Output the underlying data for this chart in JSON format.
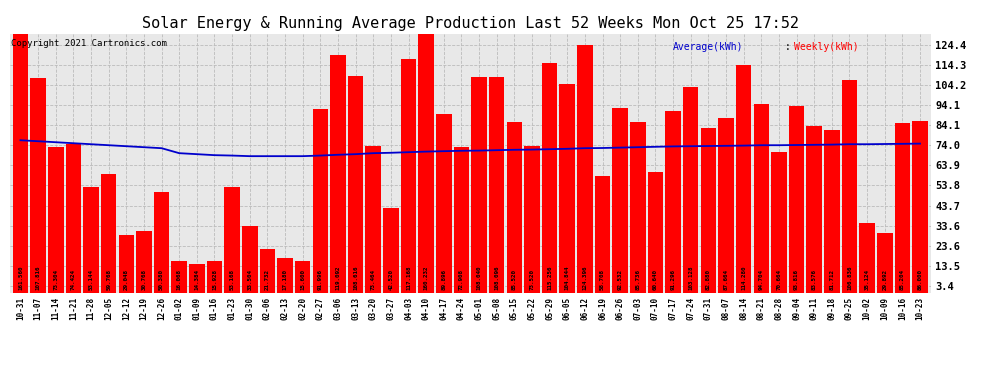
{
  "title": "Solar Energy & Running Average Production Last 52 Weeks Mon Oct 25 17:52",
  "copyright": "Copyright 2021 Cartronics.com",
  "legend_avg": "Average(kWh)",
  "legend_weekly": "Weekly(kWh)",
  "bar_color": "#ff0000",
  "avg_line_color": "#0000cc",
  "background_color": "#ffffff",
  "plot_bg_color": "#e8e8e8",
  "grid_color": "#bbbbbb",
  "categories": [
    "10-31",
    "11-07",
    "11-14",
    "11-21",
    "11-28",
    "12-05",
    "12-12",
    "12-19",
    "12-26",
    "01-02",
    "01-09",
    "01-16",
    "01-23",
    "01-30",
    "02-06",
    "02-13",
    "02-20",
    "02-27",
    "03-06",
    "03-13",
    "03-20",
    "03-27",
    "04-03",
    "04-10",
    "04-17",
    "04-24",
    "05-01",
    "05-08",
    "05-15",
    "05-22",
    "05-29",
    "06-05",
    "06-12",
    "06-19",
    "06-26",
    "07-03",
    "07-10",
    "07-17",
    "07-24",
    "07-31",
    "08-07",
    "08-14",
    "08-21",
    "08-28",
    "09-04",
    "09-11",
    "09-18",
    "09-25",
    "10-02",
    "10-09",
    "10-16",
    "10-23"
  ],
  "weekly_values": [
    161.56,
    107.816,
    73.304,
    74.424,
    53.144,
    59.768,
    29.048,
    30.768,
    50.38,
    16.068,
    14.384,
    15.928,
    53.168,
    33.504,
    21.732,
    17.18,
    15.6,
    91.996,
    119.092,
    108.616,
    73.464,
    42.52,
    117.168,
    160.232,
    89.896,
    72.908,
    108.04,
    108.096,
    85.52,
    73.52,
    115.256,
    104.844,
    124.396,
    58.708,
    92.532,
    85.736,
    60.64,
    91.296,
    103.128,
    82.88,
    87.664,
    114.28,
    94.704,
    70.664,
    93.816,
    83.576,
    81.712,
    106.836,
    35.124,
    29.892,
    85.204,
    86.0
  ],
  "avg_values": [
    76.5,
    76.0,
    75.5,
    75.0,
    74.5,
    74.0,
    73.5,
    73.0,
    72.5,
    70.0,
    69.5,
    69.0,
    68.8,
    68.5,
    68.5,
    68.5,
    68.5,
    68.8,
    69.2,
    69.5,
    70.0,
    70.2,
    70.5,
    70.8,
    71.0,
    71.2,
    71.3,
    71.5,
    71.7,
    71.8,
    72.0,
    72.2,
    72.5,
    72.6,
    72.8,
    73.0,
    73.2,
    73.4,
    73.5,
    73.6,
    73.7,
    73.8,
    74.0,
    74.0,
    74.1,
    74.2,
    74.3,
    74.5,
    74.5,
    74.6,
    74.7,
    74.8
  ],
  "ylim": [
    0,
    130
  ],
  "yticks": [
    3.4,
    13.5,
    23.6,
    33.6,
    43.7,
    53.8,
    63.9,
    74.0,
    84.1,
    94.1,
    104.2,
    114.3,
    124.4
  ],
  "title_fontsize": 11,
  "copyright_fontsize": 6.5,
  "tick_fontsize": 5.5,
  "bar_label_fontsize": 4.2,
  "ytick_fontsize": 7.5
}
